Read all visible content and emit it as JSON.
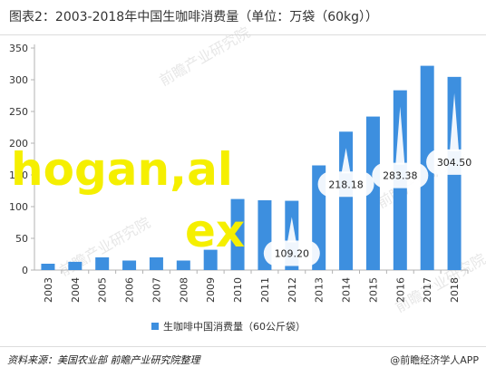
{
  "header": {
    "title": "图表2：2003-2018年中国生咖啡消费量（单位：万袋（60kg））"
  },
  "chart_data": {
    "type": "bar",
    "categories": [
      "2003",
      "2004",
      "2005",
      "2006",
      "2007",
      "2008",
      "2009",
      "2010",
      "2011",
      "2012",
      "2013",
      "2014",
      "2015",
      "2016",
      "2017",
      "2018"
    ],
    "series": [
      {
        "name": "生咖啡中国消费量（60公斤袋）",
        "values": [
          10,
          13,
          20,
          15,
          20,
          15,
          32,
          112,
          110,
          109.2,
          165,
          218.18,
          242,
          283.38,
          322,
          304.5
        ],
        "color": "#3d8fdf"
      }
    ],
    "y_ticks": [
      "0",
      "50",
      "100",
      "150",
      "200",
      "250",
      "300",
      "350"
    ],
    "ylim": [
      0,
      350
    ],
    "grid": false,
    "legend_position": "bottom",
    "callouts": [
      {
        "category": "2012",
        "label": "109.20"
      },
      {
        "category": "2014",
        "label": "218.18"
      },
      {
        "category": "2016",
        "label": "283.38"
      },
      {
        "category": "2018",
        "label": "304.50"
      }
    ]
  },
  "watermark": {
    "text": "前瞻产业研究院",
    "color": "#c9c9c9"
  },
  "overlay": {
    "line1": "hogan,al",
    "line2": "ex",
    "color": "#f5ef00"
  },
  "footer": {
    "source": "资料来源：美国农业部 前瞻产业研究院整理",
    "brand": "@前瞻经济学人APP"
  }
}
